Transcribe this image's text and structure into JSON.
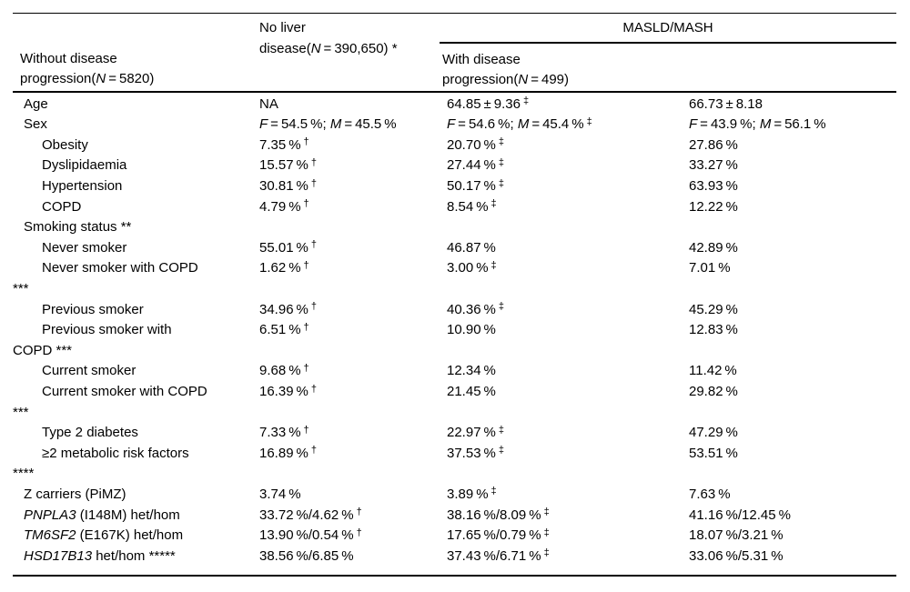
{
  "page": {
    "background": "#ffffff",
    "text_color": "#000000"
  },
  "table": {
    "header": {
      "no_liver": {
        "lines": [
          "No liver",
          "disease(<i>N</i> = 390,650) *"
        ]
      },
      "masld_group": "MASLD/MASH",
      "without_progression": {
        "lines": [
          "Without disease",
          "progression(<i>N</i> = 5820)"
        ]
      },
      "with_progression": {
        "lines": [
          "With disease",
          "progression(<i>N</i> = 499)"
        ]
      }
    },
    "rows": [
      {
        "indent": false,
        "label_lines": [
          "Age"
        ],
        "values": [
          "NA",
          "64.85 ± 9.36 <sup>‡</sup>",
          "66.73 ± 8.18"
        ]
      },
      {
        "indent": false,
        "label_lines": [
          "Sex"
        ],
        "values": [
          "<i>F</i> = 54.5 %; <i>M</i> = 45.5 %",
          "<i>F</i> = 54.6 %; <i>M</i> = 45.4 % <sup>‡</sup>",
          "<i>F</i> = 43.9 %; <i>M</i> = 56.1 %"
        ]
      },
      {
        "indent": true,
        "label_lines": [
          "Obesity"
        ],
        "values": [
          "7.35 % <sup>†</sup>",
          "20.70 % <sup>‡</sup>",
          "27.86 %"
        ]
      },
      {
        "indent": true,
        "label_lines": [
          "Dyslipidaemia"
        ],
        "values": [
          "15.57 % <sup>†</sup>",
          "27.44 % <sup>‡</sup>",
          "33.27 %"
        ]
      },
      {
        "indent": true,
        "label_lines": [
          "Hypertension"
        ],
        "values": [
          "30.81 % <sup>†</sup>",
          "50.17 % <sup>‡</sup>",
          "63.93 %"
        ]
      },
      {
        "indent": true,
        "label_lines": [
          "COPD"
        ],
        "values": [
          "4.79 % <sup>†</sup>",
          "8.54 % <sup>‡</sup>",
          "12.22 %"
        ]
      },
      {
        "indent": false,
        "label_lines": [
          "Smoking status **"
        ],
        "values": [
          "",
          "",
          ""
        ]
      },
      {
        "indent": true,
        "label_lines": [
          "Never smoker"
        ],
        "values": [
          "55.01 % <sup>†</sup>",
          "46.87 %",
          "42.89 %"
        ]
      },
      {
        "indent": true,
        "label_lines": [
          "Never smoker with COPD",
          "***"
        ],
        "values": [
          "1.62 % <sup>†</sup>",
          "3.00 % <sup>‡</sup>",
          "7.01 %"
        ]
      },
      {
        "indent": true,
        "label_lines": [
          "Previous smoker"
        ],
        "values": [
          "34.96 % <sup>†</sup>",
          "40.36 % <sup>‡</sup>",
          "45.29 %"
        ]
      },
      {
        "indent": true,
        "label_lines": [
          "Previous smoker with",
          "COPD ***"
        ],
        "values": [
          "6.51 % <sup>†</sup>",
          "10.90 %",
          "12.83 %"
        ]
      },
      {
        "indent": true,
        "label_lines": [
          "Current smoker"
        ],
        "values": [
          "9.68 % <sup>†</sup>",
          "12.34 %",
          "11.42 %"
        ]
      },
      {
        "indent": true,
        "label_lines": [
          "Current smoker with COPD",
          "***"
        ],
        "values": [
          "16.39 % <sup>†</sup>",
          "21.45 %",
          "29.82 %"
        ]
      },
      {
        "indent": true,
        "label_lines": [
          "Type 2 diabetes"
        ],
        "values": [
          "7.33 % <sup>†</sup>",
          "22.97 % <sup>‡</sup>",
          "47.29 %"
        ]
      },
      {
        "indent": true,
        "label_lines": [
          "≥2 metabolic risk factors",
          "****"
        ],
        "values": [
          "16.89 % <sup>†</sup>",
          "37.53 % <sup>‡</sup>",
          "53.51 %"
        ]
      },
      {
        "indent": false,
        "label_lines": [
          "Z carriers (PiMZ)"
        ],
        "values": [
          "3.74 %",
          "3.89 % <sup>‡</sup>",
          "7.63 %"
        ]
      },
      {
        "indent": false,
        "label_lines": [
          "<i>PNPLA3</i> (I148M) het/hom"
        ],
        "values": [
          "33.72 %/4.62 % <sup>†</sup>",
          "38.16 %/8.09 % <sup>‡</sup>",
          "41.16 %/12.45 %"
        ]
      },
      {
        "indent": false,
        "label_lines": [
          "<i>TM6SF2</i> (E167K) het/hom"
        ],
        "values": [
          "13.90 %/0.54 % <sup>†</sup>",
          "17.65 %/0.79 % <sup>‡</sup>",
          "18.07 %/3.21 %"
        ]
      },
      {
        "indent": false,
        "label_lines": [
          "<i>HSD17B13</i> het/hom *****"
        ],
        "values": [
          "38.56 %/6.85 %",
          "37.43 %/6.71 % <sup>‡</sup>",
          "33.06 %/5.31 %"
        ]
      }
    ]
  }
}
